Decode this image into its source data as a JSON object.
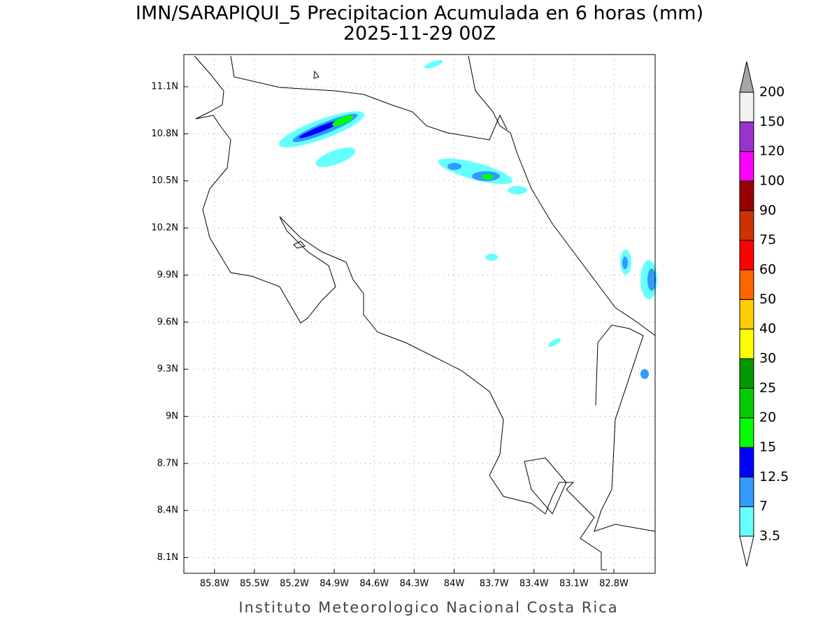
{
  "header": {
    "title": "IMN/SARAPIQUI_5 Precipitacion Acumulada en 6 horas (mm)",
    "subtitle": "2025-11-29 00Z"
  },
  "map": {
    "lon_lim": [
      -86.03,
      -82.49
    ],
    "lat_lim": [
      8.0,
      11.305
    ],
    "lon_ticks": [
      {
        "value": -85.8,
        "label": "85.8W"
      },
      {
        "value": -85.5,
        "label": "85.5W"
      },
      {
        "value": -85.2,
        "label": "85.2W"
      },
      {
        "value": -84.9,
        "label": "84.9W"
      },
      {
        "value": -84.6,
        "label": "84.6W"
      },
      {
        "value": -84.3,
        "label": "84.3W"
      },
      {
        "value": -84.0,
        "label": "84W"
      },
      {
        "value": -83.7,
        "label": "83.7W"
      },
      {
        "value": -83.4,
        "label": "83.4W"
      },
      {
        "value": -83.1,
        "label": "83.1W"
      },
      {
        "value": -82.8,
        "label": "82.8W"
      }
    ],
    "lat_ticks": [
      {
        "value": 11.1,
        "label": "11.1N"
      },
      {
        "value": 10.8,
        "label": "10.8N"
      },
      {
        "value": 10.5,
        "label": "10.5N"
      },
      {
        "value": 10.2,
        "label": "10.2N"
      },
      {
        "value": 9.9,
        "label": "9.9N"
      },
      {
        "value": 9.6,
        "label": "9.6N"
      },
      {
        "value": 9.3,
        "label": "9.3N"
      },
      {
        "value": 9.0,
        "label": "9N"
      },
      {
        "value": 8.7,
        "label": "8.7N"
      },
      {
        "value": 8.4,
        "label": "8.4N"
      },
      {
        "value": 8.1,
        "label": "8.1N"
      }
    ],
    "grid": true
  },
  "colorbar": {
    "levels": [
      3.5,
      7,
      12.5,
      15,
      20,
      25,
      30,
      40,
      50,
      60,
      75,
      90,
      100,
      120,
      150,
      200
    ],
    "colors": [
      "#ffffff",
      "#66ffff",
      "#3399ff",
      "#0000ff",
      "#00ff00",
      "#00cc00",
      "#009900",
      "#ffff00",
      "#ffcc00",
      "#ff6600",
      "#ff0000",
      "#cc3300",
      "#990000",
      "#ff00ff",
      "#9933cc",
      "#f2f2f2",
      "#a6a6a6"
    ]
  },
  "footer": {
    "text": "Instituto Meteorologico Nacional Costa Rica"
  }
}
